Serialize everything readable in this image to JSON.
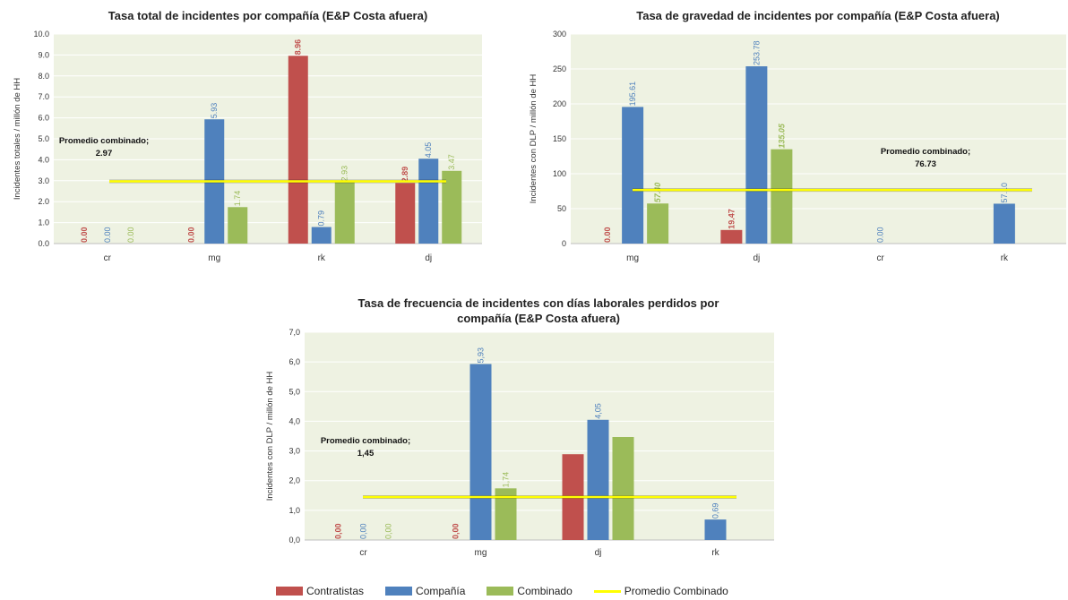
{
  "colors": {
    "contratistas": "#c0504d",
    "compania": "#4f81bd",
    "combinado": "#9bbb59",
    "promedio": "#ffff00",
    "plot_bg": "#eef2e2",
    "grid": "#ffffff"
  },
  "legend": {
    "contratistas": "Contratistas",
    "compania": "Compañía",
    "combinado": "Combinado",
    "promedio": "Promedio Combinado"
  },
  "chart_data": [
    {
      "type": "bar",
      "title": "Tasa total de incidentes por compañía (E&P Costa afuera)",
      "ylabel": "Incidentes totales / millón de HH",
      "categories": [
        "cr",
        "mg",
        "rk",
        "dj"
      ],
      "ylim": [
        0,
        10
      ],
      "yticks": [
        "0.0",
        "1.0",
        "2.0",
        "3.0",
        "4.0",
        "5.0",
        "6.0",
        "7.0",
        "8.0",
        "9.0",
        "10.0"
      ],
      "series": [
        {
          "name": "Contratistas",
          "values": [
            0,
            0,
            8.96,
            2.89
          ],
          "labels": [
            "0.00",
            "0.00",
            "8.96",
            "2.89"
          ]
        },
        {
          "name": "Compañía",
          "values": [
            0,
            5.93,
            0.79,
            4.05
          ],
          "labels": [
            "0.00",
            "5.93",
            "0.79",
            "4.05"
          ]
        },
        {
          "name": "Combinado",
          "values": [
            0,
            1.74,
            2.93,
            3.47
          ],
          "labels": [
            "0.00",
            "1.74",
            "2.93",
            "3.47"
          ]
        }
      ],
      "average": {
        "value": 2.97,
        "label": "Promedio combinado;",
        "value_label": "2.97"
      },
      "grid": true
    },
    {
      "type": "bar",
      "title": "Tasa de gravedad de incidentes por compañía (E&P Costa afuera)",
      "ylabel": "Incidentes con DLP / millón de HH",
      "categories": [
        "mg",
        "dj",
        "cr",
        "rk"
      ],
      "ylim": [
        0,
        300
      ],
      "yticks": [
        "0",
        "50",
        "100",
        "150",
        "200",
        "250",
        "300"
      ],
      "series": [
        {
          "name": "Contratistas",
          "values": [
            0,
            19.47,
            null,
            null
          ],
          "labels": [
            "0.00",
            "19.47",
            "",
            ""
          ]
        },
        {
          "name": "Compañía",
          "values": [
            195.61,
            253.78,
            0,
            57.1
          ],
          "labels": [
            "195.61",
            "253.78",
            "0.00",
            "57.10"
          ]
        },
        {
          "name": "Combinado",
          "values": [
            57.4,
            135.05,
            null,
            null
          ],
          "labels": [
            "57.40",
            "135.05",
            "",
            ""
          ]
        }
      ],
      "average": {
        "value": 76.73,
        "label": "Promedio combinado;",
        "value_label": "76.73"
      },
      "grid": true
    },
    {
      "type": "bar",
      "title": "Tasa de frecuencia de incidentes con días laborales perdidos por compañía (E&P Costa afuera)",
      "title_lines": [
        "Tasa de frecuencia de incidentes con días laborales perdidos por",
        "compañía (E&P Costa afuera)"
      ],
      "ylabel": "Incidentes con DLP / millón de HH",
      "categories": [
        "cr",
        "mg",
        "dj",
        "rk"
      ],
      "ylim": [
        0,
        7
      ],
      "yticks": [
        "0,0",
        "1,0",
        "2,0",
        "3,0",
        "4,0",
        "5,0",
        "6,0",
        "7,0"
      ],
      "series": [
        {
          "name": "Contratistas",
          "values": [
            0,
            0,
            2.89,
            null
          ],
          "labels": [
            "0,00",
            "0,00",
            "",
            ""
          ]
        },
        {
          "name": "Compañía",
          "values": [
            0,
            5.93,
            4.05,
            0.69
          ],
          "labels": [
            "0,00",
            "5,93",
            "4,05",
            "0,69"
          ]
        },
        {
          "name": "Combinado",
          "values": [
            0,
            1.74,
            3.47,
            null
          ],
          "labels": [
            "0,00",
            "1,74",
            "",
            ""
          ]
        }
      ],
      "average": {
        "value": 1.45,
        "label": "Promedio combinado;",
        "value_label": "1,45"
      },
      "grid": true
    }
  ]
}
